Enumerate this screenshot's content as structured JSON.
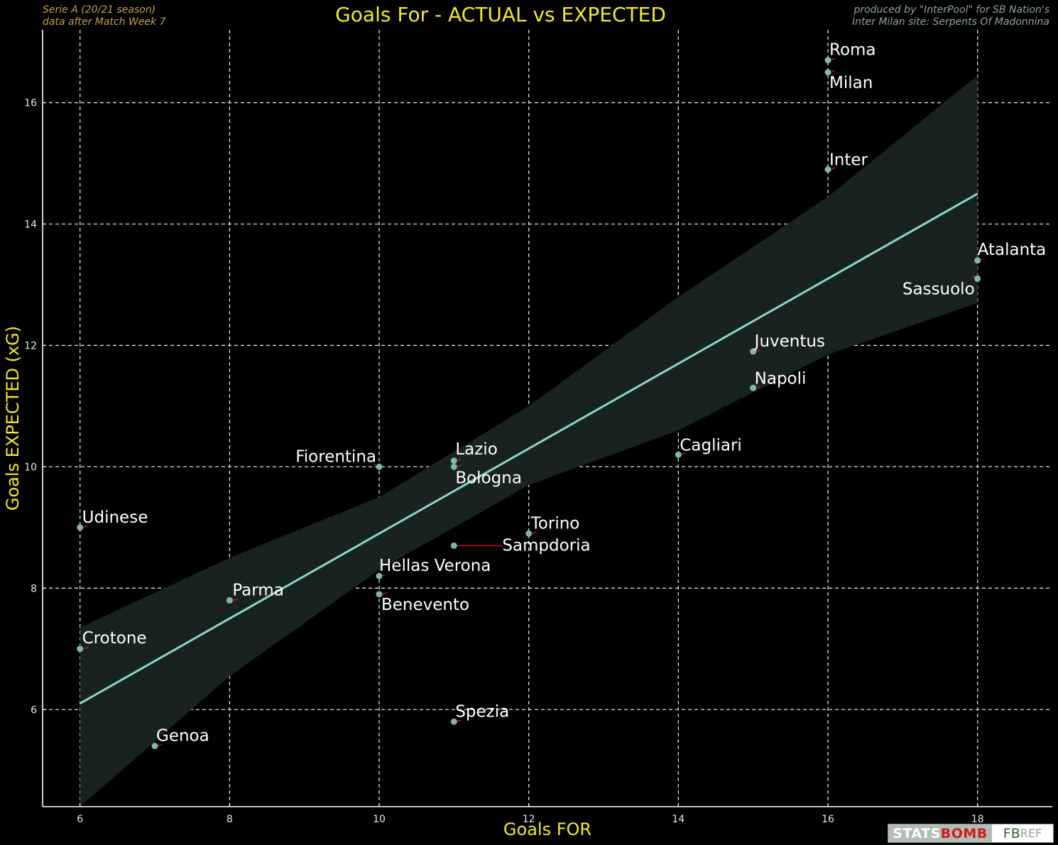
{
  "header": {
    "note_left_line1": "Serie A  (20/21 season)",
    "note_left_line2": "data after Match Week 7",
    "note_right_line1": "produced by \"InterPool\" for SB Nation's",
    "note_right_line2": "Inter Milan site: Serpents Of Madonnina"
  },
  "logos": {
    "statsbomb_a": "STATS",
    "statsbomb_b": "BOMB",
    "fbref_a": "FB",
    "fbref_b": "REF"
  },
  "colors": {
    "background": "#000000",
    "title": "#f3ea22",
    "regression_line": "#8fd4c4",
    "confidence_band": "#182220",
    "point": "#7fb8a8",
    "arrow": "#d01010",
    "grid": "#dddddd"
  },
  "chart_data": {
    "type": "scatter",
    "title": "Goals For - ACTUAL vs EXPECTED",
    "xlabel": "Goals FOR",
    "ylabel": "Goals EXPECTED (xG)",
    "xlim": [
      5.5,
      19.0
    ],
    "ylim": [
      4.4,
      17.2
    ],
    "xticks": [
      6,
      8,
      10,
      12,
      14,
      16,
      18
    ],
    "yticks": [
      6,
      8,
      10,
      12,
      14,
      16
    ],
    "grid": true,
    "regression": {
      "start": [
        6,
        6.1
      ],
      "end": [
        18,
        14.5
      ],
      "band_upper": [
        [
          6,
          7.35
        ],
        [
          8,
          8.5
        ],
        [
          10,
          9.5
        ],
        [
          12,
          11.0
        ],
        [
          14,
          12.8
        ],
        [
          16,
          14.45
        ],
        [
          18,
          16.45
        ]
      ],
      "band_lower": [
        [
          6,
          4.4
        ],
        [
          8,
          6.55
        ],
        [
          10,
          8.3
        ],
        [
          12,
          9.7
        ],
        [
          14,
          10.6
        ],
        [
          16,
          11.85
        ],
        [
          18,
          12.7
        ]
      ]
    },
    "points": [
      {
        "team": "Roma",
        "x": 16,
        "y": 16.7
      },
      {
        "team": "Milan",
        "x": 16,
        "y": 16.5
      },
      {
        "team": "Inter",
        "x": 16,
        "y": 14.9
      },
      {
        "team": "Atalanta",
        "x": 18,
        "y": 13.4
      },
      {
        "team": "Sassuolo",
        "x": 18,
        "y": 13.1
      },
      {
        "team": "Juventus",
        "x": 15,
        "y": 11.9
      },
      {
        "team": "Napoli",
        "x": 15,
        "y": 11.3
      },
      {
        "team": "Cagliari",
        "x": 14,
        "y": 10.2
      },
      {
        "team": "Fiorentina",
        "x": 10,
        "y": 10.0
      },
      {
        "team": "Lazio",
        "x": 11,
        "y": 10.1
      },
      {
        "team": "Bologna",
        "x": 11,
        "y": 10.0
      },
      {
        "team": "Udinese",
        "x": 6,
        "y": 9.0
      },
      {
        "team": "Torino",
        "x": 12,
        "y": 8.9
      },
      {
        "team": "Sampdoria",
        "x": 11,
        "y": 8.7
      },
      {
        "team": "Hellas Verona",
        "x": 10,
        "y": 8.2
      },
      {
        "team": "Benevento",
        "x": 10,
        "y": 7.9
      },
      {
        "team": "Parma",
        "x": 8,
        "y": 7.8
      },
      {
        "team": "Crotone",
        "x": 6,
        "y": 7.0
      },
      {
        "team": "Spezia",
        "x": 11,
        "y": 5.8
      },
      {
        "team": "Genoa",
        "x": 7,
        "y": 5.4
      }
    ]
  }
}
